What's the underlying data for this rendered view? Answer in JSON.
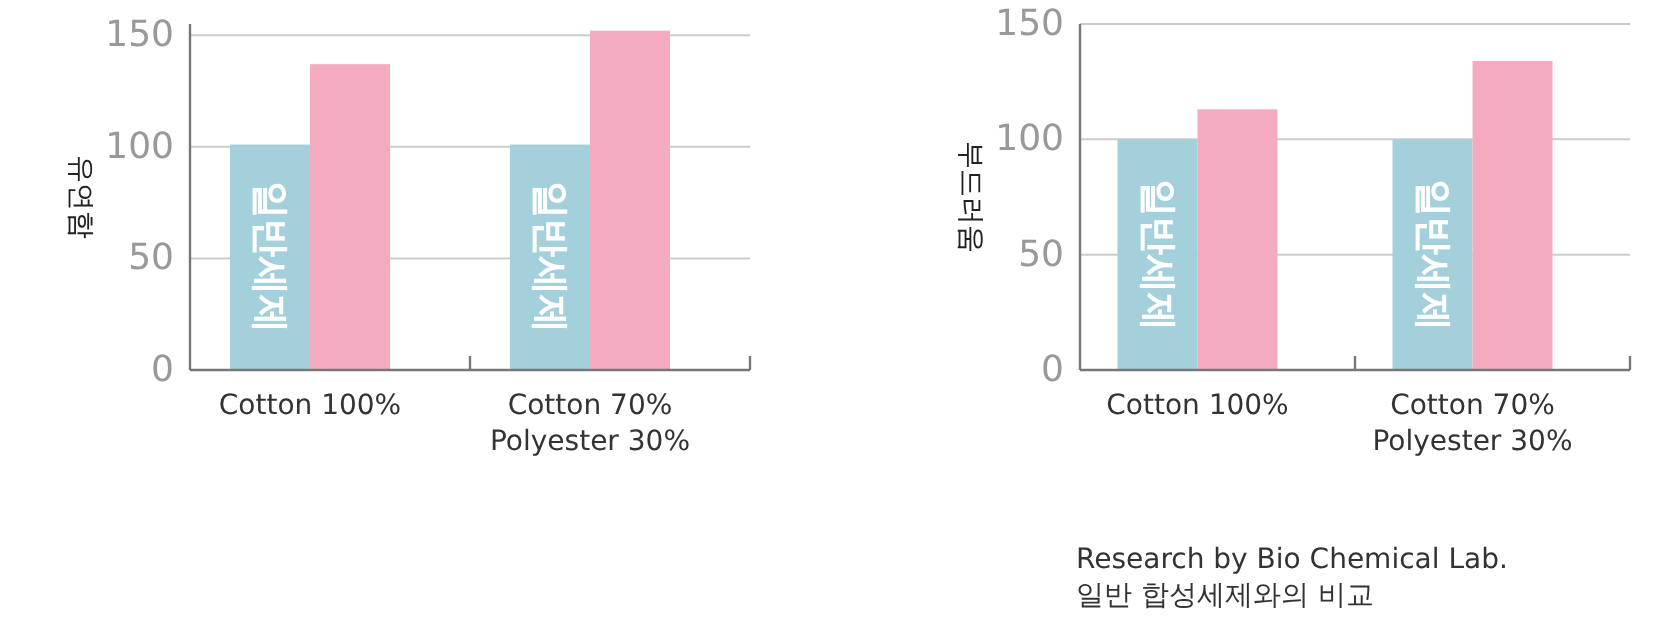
{
  "chart_data": [
    {
      "type": "bar",
      "ylabel": "유연함",
      "categories": [
        "Cotton 100%",
        "Cotton 70%\nPolyester 30%"
      ],
      "series": [
        {
          "name": "일반세제",
          "color": "#a3d0db",
          "values": [
            101,
            101
          ]
        },
        {
          "color": "#f4abbf",
          "values": [
            137,
            152
          ]
        }
      ],
      "ylim": [
        0,
        155
      ],
      "yticks": [
        0,
        50,
        100,
        150
      ],
      "grid": "y"
    },
    {
      "type": "bar",
      "ylabel": "부드러움",
      "categories": [
        "Cotton 100%",
        "Cotton 70%\nPolyester 30%"
      ],
      "series": [
        {
          "name": "일반세제",
          "color": "#a3d0db",
          "values": [
            100,
            100
          ]
        },
        {
          "color": "#f4abbf",
          "values": [
            113,
            134
          ]
        }
      ],
      "ylim": [
        0,
        150
      ],
      "yticks": [
        0,
        50,
        100,
        150
      ],
      "grid": "y",
      "annotations": [
        "Research by Bio Chemical Lab.",
        "일반 합성세제와의 비교"
      ]
    }
  ]
}
